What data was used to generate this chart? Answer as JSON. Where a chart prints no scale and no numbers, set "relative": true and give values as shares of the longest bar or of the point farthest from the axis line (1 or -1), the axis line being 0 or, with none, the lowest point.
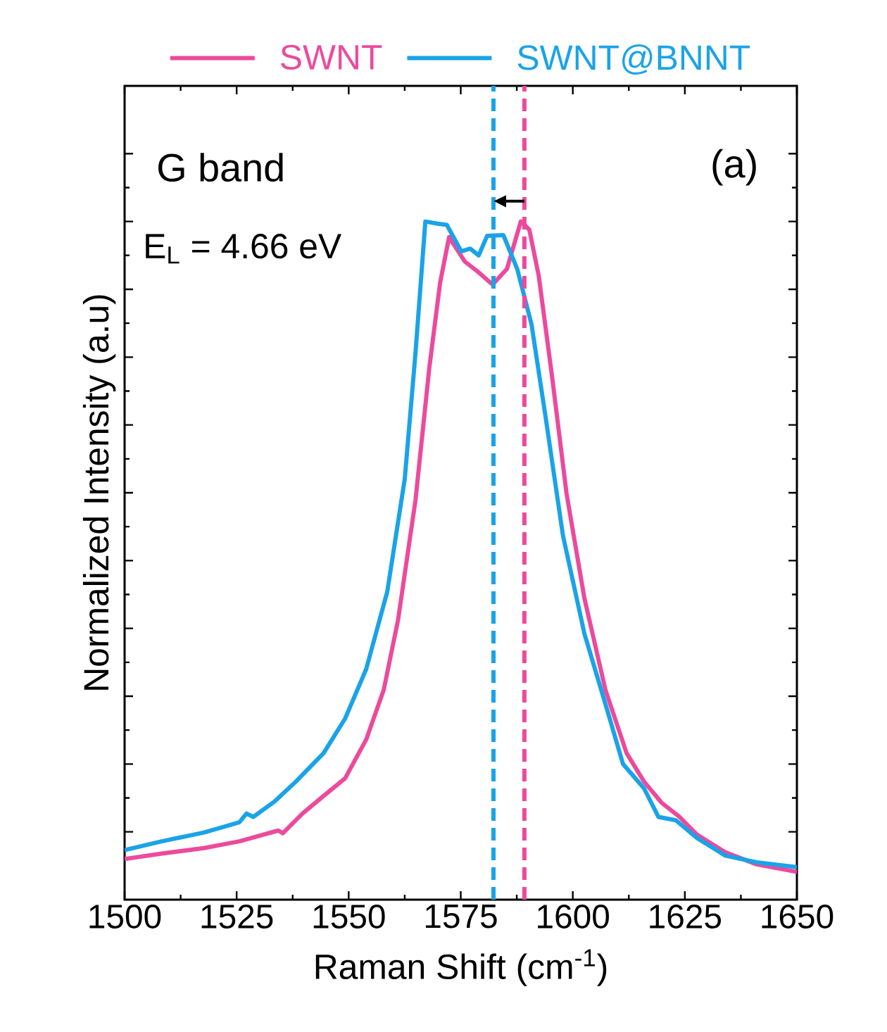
{
  "chart_data": {
    "type": "line",
    "relative": true,
    "xlabel": "Raman Shift (cm$^{-1}$)",
    "ylabel": "Normalized Intensity (a.u)",
    "xlim": [
      1500,
      1650
    ],
    "xticks": [
      1500,
      1525,
      1550,
      1575,
      1600,
      1625,
      1650
    ],
    "tick_labels": "x",
    "legend": "top",
    "annotations": [
      "G band",
      "(a)",
      "E$_{L}$ = 4.66 eV"
    ],
    "ref_lines": [
      {
        "axis": "x",
        "value": 1582.3,
        "color": "#1aa3e8",
        "line_style": "dashed"
      },
      {
        "axis": "x",
        "value": 1589.2,
        "color": "#ec4a9c",
        "line_style": "dashed"
      }
    ],
    "series": [
      {
        "name": "SWNT",
        "color": "#ec4a9c",
        "x": [
          1500,
          1508.3,
          1517.7,
          1525.6,
          1534.3,
          1535.3,
          1539.7,
          1544.4,
          1549.2,
          1553.9,
          1557.8,
          1561.0,
          1564.9,
          1568.0,
          1570.4,
          1572.4,
          1575.9,
          1579.0,
          1582.1,
          1585.3,
          1588.4,
          1590.3,
          1592.4,
          1595.5,
          1598.6,
          1602.6,
          1607.3,
          1612.0,
          1615.9,
          1619.8,
          1623.8,
          1627.7,
          1634,
          1641,
          1650
        ],
        "values": [
          0.06,
          0.068,
          0.076,
          0.086,
          0.102,
          0.098,
          0.127,
          0.153,
          0.179,
          0.236,
          0.309,
          0.412,
          0.589,
          0.785,
          0.91,
          0.977,
          0.941,
          0.925,
          0.907,
          0.93,
          1.0,
          0.988,
          0.92,
          0.765,
          0.599,
          0.444,
          0.309,
          0.216,
          0.174,
          0.143,
          0.122,
          0.096,
          0.07,
          0.052,
          0.041
        ]
      },
      {
        "name": "SWNT@BNNT",
        "color": "#1aa3e8",
        "x": [
          1500,
          1508.3,
          1517.7,
          1525.6,
          1527.2,
          1528.7,
          1533.5,
          1538.2,
          1544.4,
          1549.2,
          1553.9,
          1558.6,
          1562.5,
          1564.9,
          1567.1,
          1569.6,
          1571.9,
          1575.1,
          1577.1,
          1579.0,
          1580.9,
          1584.5,
          1587.6,
          1590.8,
          1593.9,
          1597.8,
          1602.6,
          1607.3,
          1611.2,
          1615.9,
          1619.1,
          1623.0,
          1627.7,
          1634,
          1641,
          1650
        ],
        "values": [
          0.073,
          0.086,
          0.099,
          0.114,
          0.127,
          0.122,
          0.145,
          0.174,
          0.216,
          0.267,
          0.34,
          0.454,
          0.62,
          0.806,
          1.0,
          0.997,
          0.995,
          0.956,
          0.96,
          0.95,
          0.979,
          0.98,
          0.93,
          0.848,
          0.713,
          0.537,
          0.392,
          0.288,
          0.2,
          0.164,
          0.122,
          0.117,
          0.091,
          0.065,
          0.055,
          0.048
        ]
      }
    ]
  }
}
